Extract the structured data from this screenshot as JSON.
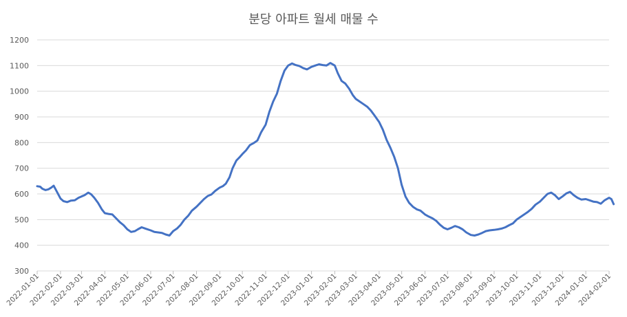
{
  "chart_data": {
    "type": "line",
    "title": "분당 아파트 월세 매물 수",
    "xlabel": "",
    "ylabel": "",
    "ylim": [
      300,
      1200
    ],
    "yticks": [
      300,
      400,
      500,
      600,
      700,
      800,
      900,
      1000,
      1100,
      1200
    ],
    "grid": true,
    "legend": "none",
    "line_color": "#4472c4",
    "xticks": [
      "2022-01-01",
      "2022-02-01",
      "2022-03-01",
      "2022-04-01",
      "2022-05-01",
      "2022-06-01",
      "2022-07-01",
      "2022-08-01",
      "2022-09-01",
      "2022-10-01",
      "2022-11-01",
      "2022-12-01",
      "2023-01-01",
      "2023-02-01",
      "2023-03-01",
      "2023-04-01",
      "2023-05-01",
      "2023-06-01",
      "2023-07-01",
      "2023-08-01",
      "2023-09-01",
      "2023-10-01",
      "2023-11-01",
      "2023-12-01",
      "2024-01-01",
      "2024-02-01"
    ],
    "series": [
      {
        "points": [
          [
            "2022-01-01",
            630
          ],
          [
            "2022-01-05",
            628
          ],
          [
            "2022-01-08",
            620
          ],
          [
            "2022-01-12",
            615
          ],
          [
            "2022-01-16",
            618
          ],
          [
            "2022-01-20",
            625
          ],
          [
            "2022-01-23",
            632
          ],
          [
            "2022-01-27",
            610
          ],
          [
            "2022-02-01",
            582
          ],
          [
            "2022-02-05",
            572
          ],
          [
            "2022-02-10",
            568
          ],
          [
            "2022-02-15",
            574
          ],
          [
            "2022-02-20",
            575
          ],
          [
            "2022-02-25",
            585
          ],
          [
            "2022-03-01",
            590
          ],
          [
            "2022-03-05",
            595
          ],
          [
            "2022-03-10",
            605
          ],
          [
            "2022-03-14",
            598
          ],
          [
            "2022-03-18",
            585
          ],
          [
            "2022-03-23",
            565
          ],
          [
            "2022-03-28",
            540
          ],
          [
            "2022-04-01",
            525
          ],
          [
            "2022-04-06",
            522
          ],
          [
            "2022-04-11",
            520
          ],
          [
            "2022-04-16",
            505
          ],
          [
            "2022-04-21",
            490
          ],
          [
            "2022-04-26",
            478
          ],
          [
            "2022-05-01",
            462
          ],
          [
            "2022-05-06",
            452
          ],
          [
            "2022-05-11",
            455
          ],
          [
            "2022-05-15",
            462
          ],
          [
            "2022-05-20",
            470
          ],
          [
            "2022-05-25",
            465
          ],
          [
            "2022-06-01",
            458
          ],
          [
            "2022-06-06",
            452
          ],
          [
            "2022-06-11",
            450
          ],
          [
            "2022-06-16",
            448
          ],
          [
            "2022-06-21",
            442
          ],
          [
            "2022-06-26",
            438
          ],
          [
            "2022-07-01",
            455
          ],
          [
            "2022-07-06",
            465
          ],
          [
            "2022-07-11",
            480
          ],
          [
            "2022-07-16",
            500
          ],
          [
            "2022-07-21",
            515
          ],
          [
            "2022-07-26",
            535
          ],
          [
            "2022-08-01",
            550
          ],
          [
            "2022-08-06",
            565
          ],
          [
            "2022-08-11",
            580
          ],
          [
            "2022-08-16",
            592
          ],
          [
            "2022-08-21",
            598
          ],
          [
            "2022-08-26",
            612
          ],
          [
            "2022-09-01",
            625
          ],
          [
            "2022-09-05",
            630
          ],
          [
            "2022-09-09",
            640
          ],
          [
            "2022-09-14",
            665
          ],
          [
            "2022-09-18",
            700
          ],
          [
            "2022-09-23",
            730
          ],
          [
            "2022-09-28",
            745
          ],
          [
            "2022-10-01",
            755
          ],
          [
            "2022-10-06",
            770
          ],
          [
            "2022-10-11",
            790
          ],
          [
            "2022-10-16",
            798
          ],
          [
            "2022-10-21",
            808
          ],
          [
            "2022-10-26",
            840
          ],
          [
            "2022-11-01",
            870
          ],
          [
            "2022-11-06",
            920
          ],
          [
            "2022-11-11",
            960
          ],
          [
            "2022-11-16",
            990
          ],
          [
            "2022-11-21",
            1040
          ],
          [
            "2022-11-26",
            1080
          ],
          [
            "2022-12-01",
            1100
          ],
          [
            "2022-12-06",
            1108
          ],
          [
            "2022-12-11",
            1102
          ],
          [
            "2022-12-16",
            1098
          ],
          [
            "2022-12-21",
            1090
          ],
          [
            "2022-12-26",
            1085
          ],
          [
            "2023-01-01",
            1095
          ],
          [
            "2023-01-06",
            1100
          ],
          [
            "2023-01-11",
            1105
          ],
          [
            "2023-01-16",
            1102
          ],
          [
            "2023-01-21",
            1100
          ],
          [
            "2023-01-26",
            1110
          ],
          [
            "2023-02-01",
            1100
          ],
          [
            "2023-02-05",
            1070
          ],
          [
            "2023-02-10",
            1040
          ],
          [
            "2023-02-15",
            1030
          ],
          [
            "2023-02-20",
            1010
          ],
          [
            "2023-02-25",
            985
          ],
          [
            "2023-03-01",
            970
          ],
          [
            "2023-03-06",
            960
          ],
          [
            "2023-03-11",
            950
          ],
          [
            "2023-03-16",
            940
          ],
          [
            "2023-03-21",
            925
          ],
          [
            "2023-03-26",
            905
          ],
          [
            "2023-04-01",
            880
          ],
          [
            "2023-04-06",
            850
          ],
          [
            "2023-04-11",
            810
          ],
          [
            "2023-04-16",
            780
          ],
          [
            "2023-04-21",
            745
          ],
          [
            "2023-04-26",
            700
          ],
          [
            "2023-05-01",
            635
          ],
          [
            "2023-05-06",
            590
          ],
          [
            "2023-05-11",
            565
          ],
          [
            "2023-05-16",
            550
          ],
          [
            "2023-05-21",
            540
          ],
          [
            "2023-05-26",
            535
          ],
          [
            "2023-06-01",
            520
          ],
          [
            "2023-06-06",
            512
          ],
          [
            "2023-06-11",
            505
          ],
          [
            "2023-06-16",
            495
          ],
          [
            "2023-06-21",
            480
          ],
          [
            "2023-06-26",
            468
          ],
          [
            "2023-07-01",
            462
          ],
          [
            "2023-07-06",
            468
          ],
          [
            "2023-07-11",
            475
          ],
          [
            "2023-07-16",
            470
          ],
          [
            "2023-07-21",
            462
          ],
          [
            "2023-07-26",
            450
          ],
          [
            "2023-08-01",
            440
          ],
          [
            "2023-08-06",
            438
          ],
          [
            "2023-08-11",
            442
          ],
          [
            "2023-08-16",
            448
          ],
          [
            "2023-08-21",
            455
          ],
          [
            "2023-08-26",
            458
          ],
          [
            "2023-09-01",
            460
          ],
          [
            "2023-09-06",
            462
          ],
          [
            "2023-09-11",
            465
          ],
          [
            "2023-09-16",
            470
          ],
          [
            "2023-09-21",
            478
          ],
          [
            "2023-09-26",
            485
          ],
          [
            "2023-10-01",
            500
          ],
          [
            "2023-10-06",
            510
          ],
          [
            "2023-10-11",
            520
          ],
          [
            "2023-10-16",
            530
          ],
          [
            "2023-10-21",
            542
          ],
          [
            "2023-10-26",
            558
          ],
          [
            "2023-11-01",
            570
          ],
          [
            "2023-11-06",
            585
          ],
          [
            "2023-11-11",
            600
          ],
          [
            "2023-11-16",
            605
          ],
          [
            "2023-11-21",
            595
          ],
          [
            "2023-11-26",
            580
          ],
          [
            "2023-12-01",
            590
          ],
          [
            "2023-12-06",
            602
          ],
          [
            "2023-12-11",
            608
          ],
          [
            "2023-12-16",
            595
          ],
          [
            "2023-12-21",
            585
          ],
          [
            "2023-12-26",
            578
          ],
          [
            "2024-01-01",
            580
          ],
          [
            "2024-01-06",
            575
          ],
          [
            "2024-01-11",
            570
          ],
          [
            "2024-01-16",
            568
          ],
          [
            "2024-01-21",
            562
          ],
          [
            "2024-01-26",
            575
          ],
          [
            "2024-02-01",
            585
          ],
          [
            "2024-02-04",
            580
          ],
          [
            "2024-02-07",
            560
          ]
        ]
      }
    ]
  }
}
